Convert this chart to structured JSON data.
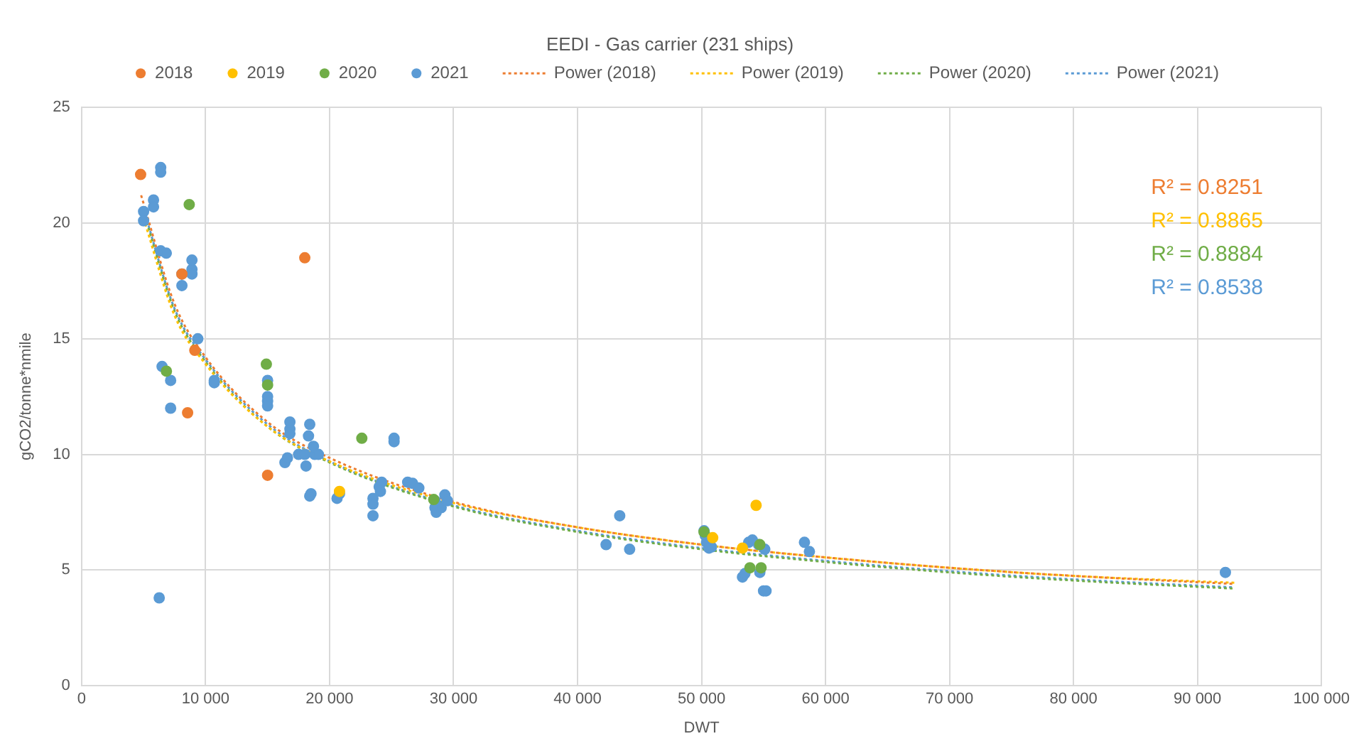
{
  "chart_data": {
    "type": "scatter",
    "title": "EEDI - Gas carrier (231 ships)",
    "xlabel": "DWT",
    "ylabel": "gCO2/tonne*nmile",
    "xlim": [
      0,
      100000
    ],
    "xticks": [
      0,
      {
        "value": 10000,
        "label": "10 000"
      },
      {
        "value": 20000,
        "label": "20 000"
      },
      {
        "value": 30000,
        "label": "30 000"
      },
      {
        "value": 40000,
        "label": "40 000"
      },
      {
        "value": 50000,
        "label": "50 000"
      },
      {
        "value": 60000,
        "label": "60 000"
      },
      {
        "value": 70000,
        "label": "70 000"
      },
      {
        "value": 80000,
        "label": "80 000"
      },
      {
        "value": 90000,
        "label": "90 000"
      },
      {
        "value": 100000,
        "label": "100 000"
      }
    ],
    "ylim": [
      0,
      25
    ],
    "yticks": [
      0,
      5,
      10,
      15,
      20,
      25
    ],
    "grid": true,
    "legend": "top",
    "marker": "circle",
    "series": [
      {
        "name": "2018",
        "type": "scatter",
        "color": "#ed7d31",
        "x": [
          4760,
          18000,
          9130,
          8550,
          15000,
          8090
        ],
        "values": [
          22.1,
          18.5,
          14.5,
          11.8,
          9.1,
          17.8
        ]
      },
      {
        "name": "2019",
        "type": "scatter",
        "color": "#ffc000",
        "x": [
          54400,
          50900,
          53300,
          20800
        ],
        "values": [
          7.8,
          6.4,
          5.95,
          8.4
        ]
      },
      {
        "name": "2020",
        "type": "scatter",
        "color": "#70ad47",
        "x": [
          8680,
          6840,
          14900,
          22600,
          28400,
          50200,
          53900,
          54800,
          54700,
          15000
        ],
        "values": [
          20.8,
          13.6,
          13.9,
          10.7,
          8.05,
          6.65,
          5.1,
          5.1,
          6.1,
          13.0
        ]
      },
      {
        "name": "2021",
        "type": "scatter",
        "color": "#5b9bd5",
        "x": [
          6380,
          6380,
          5800,
          5800,
          5000,
          5000,
          6380,
          6830,
          8090,
          8900,
          8900,
          8900,
          8090,
          9370,
          6490,
          7180,
          7180,
          6260,
          10700,
          10700,
          15000,
          15000,
          15000,
          15000,
          16800,
          16800,
          16800,
          16400,
          16600,
          17500,
          18000,
          18400,
          18800,
          19100,
          18300,
          18700,
          18100,
          18500,
          18400,
          20600,
          20800,
          23500,
          23500,
          23500,
          24000,
          24200,
          24100,
          25200,
          25200,
          26300,
          26700,
          27200,
          28500,
          28500,
          28600,
          29000,
          29300,
          29500,
          42300,
          43400,
          44200,
          50200,
          50400,
          50600,
          50800,
          50300,
          53800,
          54100,
          54600,
          55100,
          53300,
          53500,
          54700,
          55000,
          55200,
          58300,
          58700,
          92250
        ],
        "values": [
          22.4,
          22.2,
          21.0,
          20.7,
          20.1,
          20.5,
          18.8,
          18.7,
          17.8,
          18.4,
          18.0,
          17.8,
          17.3,
          15.0,
          13.8,
          13.2,
          12.0,
          3.8,
          13.2,
          13.1,
          13.2,
          12.5,
          12.3,
          12.1,
          11.1,
          11.4,
          10.9,
          9.65,
          9.85,
          10.0,
          10.0,
          11.3,
          10.0,
          10.0,
          10.8,
          10.35,
          9.5,
          8.3,
          8.2,
          8.1,
          8.3,
          8.1,
          7.85,
          7.35,
          8.6,
          8.8,
          8.4,
          10.7,
          10.55,
          8.8,
          8.75,
          8.55,
          8.0,
          7.7,
          7.5,
          7.7,
          8.25,
          8.0,
          6.1,
          7.35,
          5.9,
          6.7,
          6.2,
          5.95,
          6.0,
          6.5,
          6.2,
          6.3,
          6.1,
          5.9,
          4.7,
          4.85,
          4.9,
          4.1,
          4.1,
          6.2,
          5.8,
          4.9
        ]
      },
      {
        "name": "Power (2018)",
        "type": "line",
        "line_style": "dotted",
        "marker": "none",
        "color": "#ed7d31",
        "x": [
          4800,
          7500,
          10000,
          15000,
          20000,
          30000,
          40000,
          50000,
          60000,
          70000,
          80000,
          93000
        ],
        "values": [
          21.2,
          16.5,
          14.2,
          11.4,
          9.85,
          7.95,
          6.85,
          6.1,
          5.55,
          5.1,
          4.75,
          4.4
        ]
      },
      {
        "name": "Power (2019)",
        "type": "line",
        "line_style": "dotted",
        "marker": "none",
        "color": "#ffc000",
        "x": [
          5000,
          7500,
          10000,
          15000,
          20000,
          30000,
          40000,
          50000,
          60000,
          70000,
          80000,
          93000
        ],
        "values": [
          20.2,
          16.0,
          13.9,
          11.2,
          9.7,
          7.9,
          6.85,
          6.1,
          5.55,
          5.1,
          4.75,
          4.45
        ]
      },
      {
        "name": "Power (2020)",
        "type": "line",
        "line_style": "dotted",
        "marker": "none",
        "color": "#70ad47",
        "x": [
          5000,
          7500,
          10000,
          15000,
          20000,
          30000,
          40000,
          50000,
          60000,
          70000,
          80000,
          93000
        ],
        "values": [
          20.5,
          16.2,
          14.0,
          11.2,
          9.65,
          7.75,
          6.65,
          5.9,
          5.35,
          4.9,
          4.55,
          4.2
        ]
      },
      {
        "name": "Power (2021)",
        "type": "line",
        "line_style": "dotted",
        "marker": "none",
        "color": "#5b9bd5",
        "x": [
          5000,
          7500,
          10000,
          15000,
          20000,
          30000,
          40000,
          50000,
          60000,
          70000,
          80000,
          93000
        ],
        "values": [
          20.6,
          16.3,
          14.1,
          11.3,
          9.7,
          7.8,
          6.7,
          5.95,
          5.4,
          4.95,
          4.6,
          4.25
        ]
      }
    ],
    "annotations": [
      "R² = 0.8251",
      "R² = 0.8865",
      "R² = 0.8884",
      "R² = 0.8538"
    ]
  }
}
